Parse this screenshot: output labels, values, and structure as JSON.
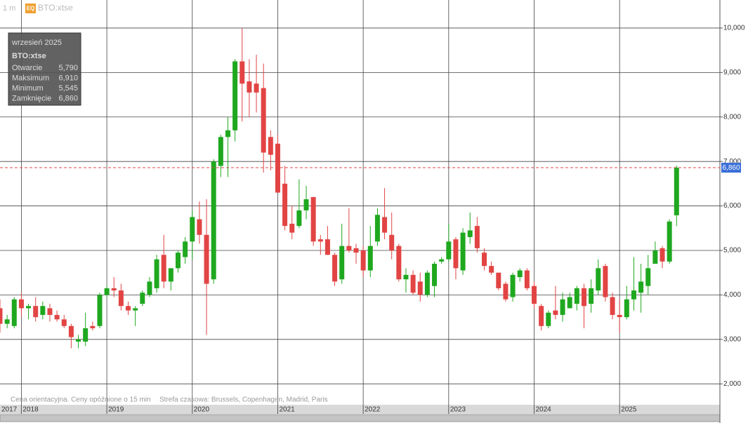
{
  "header": {
    "interval": "1 m",
    "badge": "EQ",
    "symbol": "BTO:xtse"
  },
  "tooltip": {
    "period": "wrzesień 2025",
    "symbol": "BTO:xtse",
    "rows": [
      {
        "label": "Otwarcie",
        "value": "5,790"
      },
      {
        "label": "Maksimum",
        "value": "6,910"
      },
      {
        "label": "Minimum",
        "value": "5,545"
      },
      {
        "label": "Zamknięcie",
        "value": "6,860"
      }
    ]
  },
  "footer": {
    "note": "Cena orientacyjna. Ceny opóźnione o 15 min",
    "timezone": "Strefa czasowa: Brussels, Copenhagen, Madrid, Paris"
  },
  "chart_data": {
    "type": "candlestick",
    "categories": [
      "2017",
      null,
      null,
      "2018",
      null,
      null,
      null,
      null,
      null,
      null,
      null,
      null,
      null,
      null,
      null,
      "2019",
      null,
      null,
      null,
      null,
      null,
      null,
      null,
      null,
      null,
      null,
      null,
      "2020",
      null,
      null,
      null,
      null,
      null,
      null,
      null,
      null,
      null,
      null,
      null,
      "2021",
      null,
      null,
      null,
      null,
      null,
      null,
      null,
      null,
      null,
      null,
      null,
      "2022",
      null,
      null,
      null,
      null,
      null,
      null,
      null,
      null,
      null,
      null,
      null,
      "2023",
      null,
      null,
      null,
      null,
      null,
      null,
      null,
      null,
      null,
      null,
      null,
      "2024",
      null,
      null,
      null,
      null,
      null,
      null,
      null,
      null,
      null,
      null,
      null,
      "2025",
      null,
      null,
      null,
      null,
      null,
      null,
      null,
      null
    ],
    "open": [
      3700,
      3350,
      3300,
      3900,
      3700,
      3750,
      3550,
      3700,
      3550,
      3450,
      3300,
      2950,
      2950,
      3300,
      3300,
      4000,
      4150,
      4100,
      3750,
      3650,
      3800,
      4000,
      4150,
      4900,
      4300,
      4600,
      4850,
      5200,
      5700,
      5350,
      4350,
      6900,
      7550,
      7700,
      9250,
      8800,
      8750,
      8650,
      7550,
      7400,
      6500,
      5600,
      5550,
      5900,
      6200,
      5250,
      5250,
      4900,
      4350,
      5100,
      5050,
      5000,
      4550,
      5200,
      5750,
      5350,
      5100,
      4350,
      4450,
      4300,
      4000,
      4200,
      4750,
      4800,
      5250,
      4550,
      5300,
      5550,
      4950,
      4650,
      4500,
      4250,
      3950,
      4400,
      4550,
      4200,
      3750,
      3300,
      3650,
      3550,
      3700,
      3800,
      4150,
      3800,
      4100,
      4650,
      3950,
      3550,
      3500,
      3900,
      4050,
      4200,
      4700,
      5050,
      4750,
      5790
    ],
    "high": [
      3900,
      3550,
      3950,
      4050,
      3800,
      3950,
      3850,
      3800,
      3650,
      3550,
      3350,
      3100,
      3600,
      3400,
      4050,
      4200,
      4400,
      4250,
      3850,
      3750,
      4100,
      4400,
      4900,
      5350,
      4600,
      5000,
      5300,
      5900,
      6100,
      6150,
      7050,
      7600,
      8000,
      9300,
      10000,
      9300,
      9400,
      9200,
      7700,
      7600,
      6900,
      6000,
      6600,
      6450,
      6200,
      5350,
      5550,
      4950,
      5600,
      5950,
      5150,
      5100,
      5550,
      5950,
      6400,
      5850,
      5150,
      4600,
      4550,
      4500,
      4550,
      4750,
      4850,
      5600,
      5300,
      5500,
      5850,
      5750,
      5050,
      4750,
      4500,
      4300,
      4500,
      4600,
      4600,
      4300,
      3800,
      3650,
      4200,
      4050,
      4050,
      4200,
      4250,
      4350,
      4800,
      4700,
      4050,
      3900,
      4200,
      4850,
      4700,
      4900,
      5200,
      5100,
      5700,
      6910
    ],
    "low": [
      3150,
      3250,
      3250,
      3500,
      3450,
      3400,
      3450,
      3400,
      3400,
      3250,
      2800,
      2800,
      2850,
      3200,
      3250,
      3950,
      3950,
      3650,
      3550,
      3300,
      3750,
      3950,
      4050,
      4150,
      4100,
      4500,
      4700,
      4800,
      5150,
      3100,
      4250,
      6650,
      6650,
      7450,
      7900,
      8000,
      8100,
      6750,
      6800,
      6300,
      5450,
      5250,
      5500,
      5700,
      5100,
      4900,
      4900,
      4200,
      4250,
      4950,
      4700,
      4400,
      4400,
      5100,
      5250,
      4800,
      4300,
      4050,
      4000,
      3850,
      3950,
      3950,
      4700,
      4750,
      4350,
      4450,
      5150,
      4950,
      4550,
      4450,
      4100,
      3850,
      3850,
      4300,
      4100,
      3700,
      3200,
      3250,
      3450,
      3400,
      3700,
      3650,
      3250,
      3600,
      4000,
      3850,
      3450,
      3150,
      3450,
      3650,
      3600,
      4000,
      4700,
      4600,
      4700,
      5545
    ],
    "close": [
      3350,
      3450,
      3900,
      3700,
      3750,
      3500,
      3750,
      3550,
      3450,
      3300,
      3050,
      3000,
      3250,
      3250,
      4000,
      4150,
      4100,
      3750,
      3650,
      3700,
      4050,
      4300,
      4800,
      4300,
      4600,
      4950,
      5200,
      5750,
      5350,
      4250,
      7000,
      7550,
      7700,
      9250,
      8750,
      8550,
      8550,
      7200,
      7150,
      6300,
      5550,
      5400,
      5900,
      6150,
      5200,
      5200,
      4900,
      4300,
      5100,
      5000,
      4950,
      4550,
      5100,
      5800,
      5400,
      5000,
      4350,
      4450,
      4050,
      4000,
      4500,
      4700,
      4800,
      5200,
      4600,
      5400,
      5450,
      5050,
      4650,
      4500,
      4150,
      3900,
      4450,
      4550,
      4150,
      3800,
      3300,
      3600,
      3550,
      3900,
      3950,
      4150,
      3750,
      4150,
      4600,
      3950,
      3550,
      3500,
      3900,
      4100,
      4300,
      4600,
      5000,
      4750,
      5650,
      6860
    ],
    "up_color": "#1fa81f",
    "down_color": "#e24444",
    "ylim": [
      1530,
      10630
    ],
    "yticks": [
      {
        "value": 2000,
        "label": "2,000"
      },
      {
        "value": 3000,
        "label": "3,000"
      },
      {
        "value": 4000,
        "label": "4,000"
      },
      {
        "value": 5000,
        "label": "5,000"
      },
      {
        "value": 6000,
        "label": "6,000"
      },
      {
        "value": 7000,
        "label": "7,000"
      },
      {
        "value": 8000,
        "label": "8,000"
      },
      {
        "value": 9000,
        "label": "9,000"
      },
      {
        "value": 10000,
        "label": "10,000"
      }
    ],
    "grid": true,
    "last_price": {
      "value": 6860,
      "label": "6,860"
    },
    "last_price_color": "#3a6fd8"
  }
}
